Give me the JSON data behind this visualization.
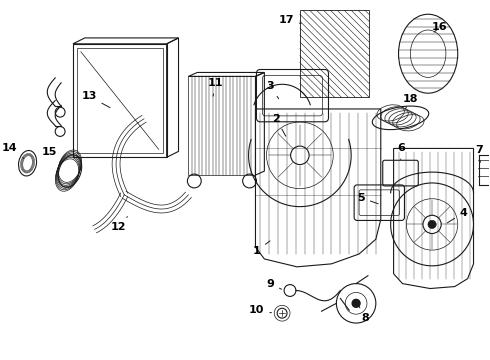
{
  "bg_color": "#ffffff",
  "line_color": "#1a1a1a",
  "label_color": "#000000",
  "label_fontsize": 8.0,
  "figsize": [
    4.9,
    3.6
  ],
  "dpi": 100
}
